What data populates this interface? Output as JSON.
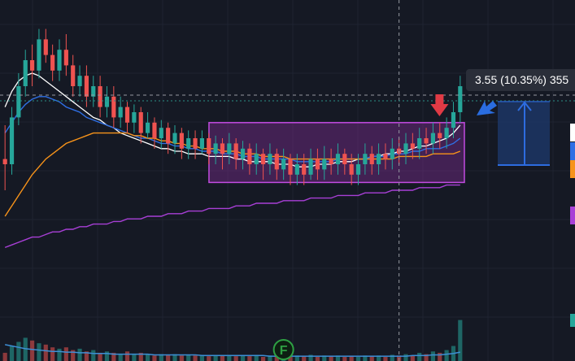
{
  "measure": {
    "price_change": "3.55",
    "percent_change": "(10.35%)",
    "ticks": "355"
  },
  "markers": {
    "earnings_label": "F"
  },
  "colors": {
    "background": "#151924",
    "grid": "#1f2431",
    "candle_up": "#26a69a",
    "candle_down": "#ef5350",
    "ma_fast": "#ffffff",
    "ma_mid": "#2f6fe4",
    "ma_slow": "#f7931a",
    "ma_long": "#a83fd6",
    "range_box_stroke": "#c24be0",
    "range_box_fill": "#7b2d8f",
    "projection_fill": "#1e3a6e",
    "projection_stroke": "#2d6cdf",
    "arrow_down": "#e03a45",
    "arrow_up": "#2a6de0",
    "volume_avg": "#3d8fd6",
    "earnings_marker": "#2ea043"
  },
  "icons": {
    "signal_arrow_down": "red-down-arrow-icon",
    "signal_arrow_up": "blue-up-arrow-icon",
    "earnings": "earnings-f-icon"
  },
  "chart_data": {
    "type": "candlestick",
    "price_range": [
      0,
      100
    ],
    "volume_range": [
      0,
      100
    ],
    "candles_note": "",
    "candles": [
      [
        42,
        40,
        55,
        30
      ],
      [
        40,
        58,
        62,
        36
      ],
      [
        58,
        70,
        75,
        55
      ],
      [
        70,
        80,
        84,
        66
      ],
      [
        80,
        76,
        86,
        70
      ],
      [
        76,
        88,
        92,
        73
      ],
      [
        88,
        82,
        92,
        79
      ],
      [
        82,
        76,
        86,
        72
      ],
      [
        76,
        84,
        88,
        72
      ],
      [
        84,
        78,
        90,
        74
      ],
      [
        78,
        70,
        82,
        66
      ],
      [
        70,
        74,
        78,
        66
      ],
      [
        74,
        66,
        78,
        62
      ],
      [
        66,
        70,
        74,
        62
      ],
      [
        70,
        62,
        74,
        58
      ],
      [
        62,
        66,
        70,
        58
      ],
      [
        66,
        58,
        70,
        54
      ],
      [
        58,
        62,
        66,
        54
      ],
      [
        62,
        56,
        64,
        52
      ],
      [
        56,
        60,
        63,
        52
      ],
      [
        60,
        52,
        62,
        48
      ],
      [
        52,
        56,
        60,
        50
      ],
      [
        56,
        50,
        58,
        46
      ],
      [
        50,
        54,
        57,
        46
      ],
      [
        54,
        48,
        56,
        44
      ],
      [
        48,
        52,
        55,
        44
      ],
      [
        52,
        46,
        54,
        42
      ],
      [
        46,
        50,
        53,
        42
      ],
      [
        50,
        46,
        53,
        42
      ],
      [
        46,
        50,
        53,
        44
      ],
      [
        50,
        44,
        52,
        40
      ],
      [
        44,
        48,
        51,
        40
      ],
      [
        48,
        44,
        50,
        38
      ],
      [
        44,
        48,
        52,
        40
      ],
      [
        48,
        42,
        50,
        38
      ],
      [
        42,
        46,
        49,
        38
      ],
      [
        46,
        40,
        48,
        36
      ],
      [
        40,
        44,
        48,
        36
      ],
      [
        44,
        40,
        46,
        34
      ],
      [
        40,
        44,
        48,
        36
      ],
      [
        44,
        38,
        46,
        34
      ],
      [
        38,
        42,
        46,
        34
      ],
      [
        42,
        36,
        44,
        32
      ],
      [
        36,
        40,
        44,
        32
      ],
      [
        40,
        36,
        44,
        32
      ],
      [
        36,
        42,
        46,
        34
      ],
      [
        42,
        38,
        46,
        34
      ],
      [
        38,
        42,
        47,
        34
      ],
      [
        42,
        40,
        46,
        36
      ],
      [
        40,
        44,
        48,
        36
      ],
      [
        44,
        40,
        46,
        36
      ],
      [
        40,
        36,
        44,
        32
      ],
      [
        36,
        40,
        44,
        32
      ],
      [
        40,
        44,
        48,
        36
      ],
      [
        44,
        40,
        47,
        36
      ],
      [
        40,
        44,
        48,
        36
      ],
      [
        44,
        42,
        48,
        38
      ],
      [
        42,
        46,
        50,
        38
      ],
      [
        46,
        44,
        50,
        40
      ],
      [
        44,
        48,
        52,
        40
      ],
      [
        48,
        46,
        52,
        42
      ],
      [
        46,
        50,
        54,
        42
      ],
      [
        50,
        48,
        54,
        44
      ],
      [
        48,
        52,
        56,
        44
      ],
      [
        52,
        50,
        56,
        46
      ],
      [
        50,
        54,
        58,
        46
      ],
      [
        54,
        60,
        64,
        50
      ],
      [
        60,
        70,
        74,
        56
      ]
    ],
    "volumes": [
      12,
      22,
      28,
      34,
      30,
      26,
      24,
      20,
      18,
      20,
      16,
      18,
      14,
      16,
      12,
      14,
      12,
      10,
      14,
      10,
      12,
      10,
      8,
      10,
      9,
      10,
      8,
      9,
      8,
      9,
      7,
      8,
      8,
      9,
      7,
      8,
      7,
      9,
      6,
      8,
      8,
      7,
      6,
      8,
      7,
      9,
      6,
      8,
      7,
      8,
      6,
      7,
      6,
      8,
      7,
      8,
      6,
      9,
      8,
      10,
      8,
      12,
      10,
      14,
      12,
      16,
      22,
      60
    ],
    "series": [
      {
        "name": "",
        "values": [
          62,
          68,
          72,
          74,
          75,
          74,
          72,
          70,
          68,
          66,
          64,
          62,
          60,
          58,
          57,
          55,
          54,
          52,
          51,
          50,
          49,
          48,
          47,
          46,
          46,
          45,
          45,
          44,
          44,
          44,
          43,
          43,
          43,
          43,
          42,
          42,
          41,
          41,
          41,
          41,
          40,
          40,
          40,
          39,
          39,
          39,
          40,
          40,
          40,
          41,
          41,
          41,
          42,
          42,
          43,
          43,
          44,
          44,
          45,
          45,
          46,
          47,
          47,
          48,
          49,
          50,
          52,
          55
        ]
      },
      {
        "name": "",
        "values": [
          52,
          56,
          60,
          63,
          65,
          66,
          66,
          65,
          64,
          62,
          61,
          60,
          58,
          57,
          56,
          55,
          54,
          53,
          52,
          51,
          50,
          50,
          49,
          48,
          48,
          47,
          47,
          46,
          46,
          45,
          45,
          45,
          44,
          44,
          44,
          43,
          43,
          43,
          42,
          42,
          42,
          42,
          42,
          41,
          41,
          41,
          41,
          41,
          41,
          42,
          42,
          42,
          42,
          42,
          43,
          43,
          43,
          44,
          44,
          44,
          45,
          45,
          46,
          46,
          46,
          47,
          48,
          50
        ]
      },
      {
        "name": "",
        "values": [
          20,
          24,
          28,
          32,
          36,
          39,
          42,
          44,
          46,
          48,
          49,
          50,
          51,
          52,
          52,
          52,
          52,
          52,
          52,
          51,
          51,
          50,
          50,
          49,
          49,
          48,
          48,
          47,
          47,
          46,
          46,
          46,
          45,
          45,
          45,
          44,
          44,
          44,
          43,
          43,
          43,
          43,
          42,
          42,
          42,
          42,
          42,
          42,
          42,
          42,
          42,
          42,
          42,
          42,
          42,
          42,
          42,
          42,
          43,
          43,
          43,
          43,
          43,
          44,
          44,
          44,
          44,
          45
        ]
      },
      {
        "name": "",
        "values": [
          8,
          9,
          10,
          11,
          12,
          12,
          13,
          14,
          14,
          15,
          15,
          16,
          16,
          17,
          17,
          17,
          18,
          18,
          19,
          19,
          19,
          20,
          20,
          20,
          21,
          21,
          21,
          22,
          22,
          22,
          23,
          23,
          23,
          23,
          24,
          24,
          24,
          25,
          25,
          25,
          25,
          26,
          26,
          26,
          26,
          27,
          27,
          27,
          27,
          28,
          28,
          28,
          28,
          29,
          29,
          29,
          29,
          30,
          30,
          30,
          30,
          31,
          31,
          31,
          31,
          32,
          32,
          32
        ]
      }
    ],
    "volume_average": [
      24,
      22,
      20,
      18,
      17,
      16,
      15,
      14,
      14,
      13,
      13,
      12,
      12,
      11,
      11,
      11,
      10,
      10,
      10,
      10,
      10,
      10,
      9,
      9,
      9,
      9,
      9,
      9,
      9,
      8,
      8,
      8,
      8,
      8,
      8,
      8,
      8,
      8,
      8,
      7,
      7,
      7,
      7,
      7,
      7,
      7,
      7,
      7,
      7,
      7,
      7,
      7,
      7,
      7,
      7,
      7,
      7,
      7,
      7,
      7,
      8,
      8,
      8,
      9,
      9,
      10,
      11,
      13
    ],
    "range_box": {
      "start_index": 31,
      "end_index": 67,
      "low": 33,
      "high": 56
    },
    "signal_arrow_down_index": 63,
    "earnings_index": 41,
    "crosshair_index": 58,
    "grid": true
  }
}
